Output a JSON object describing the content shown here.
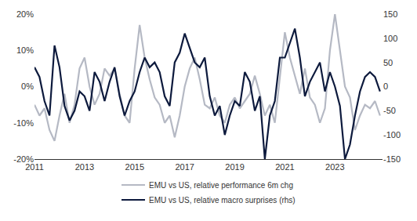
{
  "chart_data": {
    "type": "line",
    "x": [
      2011,
      2011.2,
      2011.4,
      2011.6,
      2011.8,
      2012,
      2012.2,
      2012.4,
      2012.6,
      2012.8,
      2013,
      2013.2,
      2013.4,
      2013.6,
      2013.8,
      2014,
      2014.2,
      2014.4,
      2014.6,
      2014.8,
      2015,
      2015.2,
      2015.4,
      2015.6,
      2015.8,
      2016,
      2016.2,
      2016.4,
      2016.6,
      2016.8,
      2017,
      2017.2,
      2017.4,
      2017.6,
      2017.8,
      2018,
      2018.2,
      2018.4,
      2018.6,
      2018.8,
      2019,
      2019.2,
      2019.4,
      2019.6,
      2019.8,
      2020,
      2020.2,
      2020.4,
      2020.6,
      2020.8,
      2021,
      2021.2,
      2021.4,
      2021.6,
      2021.8,
      2022,
      2022.2,
      2022.4,
      2022.6,
      2022.8,
      2023,
      2023.2,
      2023.4,
      2023.6,
      2023.8,
      2024,
      2024.2,
      2024.4,
      2024.6,
      2024.8
    ],
    "series": [
      {
        "name": "EMU vs US, relative performance 6m chg",
        "color": "#b5b9c4",
        "values": [
          -5,
          -8,
          -6,
          -12,
          -15,
          -8,
          -2,
          -10,
          -5,
          5,
          8,
          0,
          -5,
          -2,
          5,
          3,
          5,
          -2,
          -8,
          -10,
          5,
          17,
          8,
          2,
          -3,
          -5,
          -10,
          -8,
          -14,
          -8,
          0,
          5,
          8,
          2,
          -5,
          -6,
          -3,
          -8,
          -10,
          -5,
          -3,
          -6,
          -4,
          -2,
          3,
          -2,
          -8,
          -5,
          -10,
          2,
          15,
          8,
          3,
          -2,
          5,
          -3,
          -5,
          -10,
          -6,
          10,
          20,
          10,
          0,
          -3,
          -12,
          -8,
          -5,
          -6,
          -4,
          -8
        ]
      },
      {
        "name": "EMU vs US, relative macro surprises (rhs)",
        "color": "#0d1a3d",
        "axis": "y2",
        "values": [
          40,
          20,
          -30,
          -60,
          85,
          40,
          -40,
          -70,
          -50,
          -10,
          -20,
          -50,
          30,
          10,
          -30,
          10,
          40,
          -20,
          -60,
          -30,
          -10,
          30,
          60,
          40,
          50,
          30,
          -20,
          -40,
          50,
          70,
          110,
          80,
          50,
          40,
          60,
          -20,
          -60,
          -40,
          -100,
          -60,
          -30,
          -40,
          30,
          10,
          -50,
          -20,
          -150,
          -60,
          -30,
          60,
          60,
          90,
          120,
          60,
          -20,
          10,
          30,
          50,
          -10,
          30,
          0,
          -40,
          -150,
          -120,
          -60,
          -10,
          20,
          30,
          20,
          -10
        ]
      }
    ],
    "xlim": [
      2011,
      2024.9
    ],
    "xticks": [
      2011,
      2013,
      2015,
      2017,
      2019,
      2021,
      2023
    ],
    "ylim": [
      -20,
      20
    ],
    "yticks": [
      {
        "value": -20,
        "label": "-20%"
      },
      {
        "value": -10,
        "label": "-10%"
      },
      {
        "value": 0,
        "label": "0%"
      },
      {
        "value": 10,
        "label": "10%"
      },
      {
        "value": 20,
        "label": "20%"
      }
    ],
    "y2lim": [
      -150,
      150
    ],
    "y2ticks": [
      -150,
      -100,
      -50,
      0,
      50,
      100,
      150
    ],
    "grid": false,
    "legend": "bottom"
  }
}
